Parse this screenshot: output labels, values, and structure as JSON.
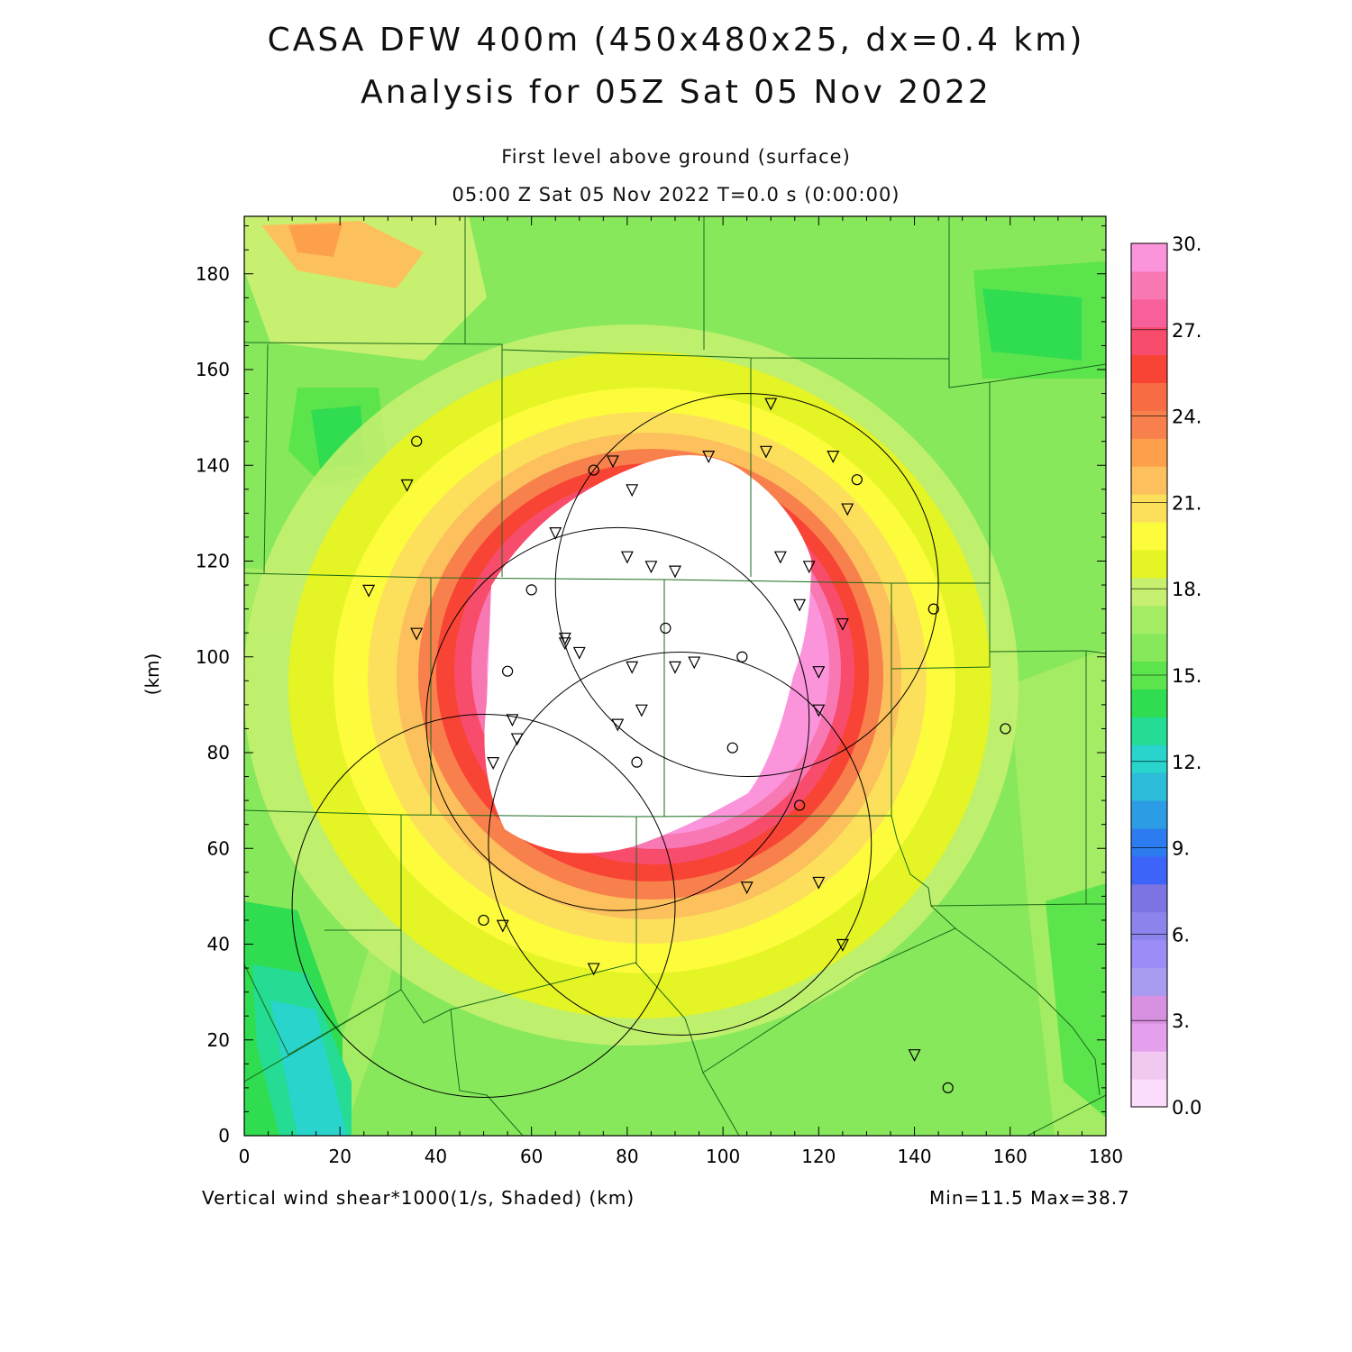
{
  "header": {
    "title_line1": "CASA DFW 400m (450x480x25, dx=0.4 km)",
    "title_line2": "Analysis for 05Z Sat 05 Nov 2022",
    "level": "First level above ground (surface)",
    "time": "05:00 Z Sat 05 Nov 2022   T=0.0 s (0:00:00)"
  },
  "footer": {
    "variable": "Vertical wind shear*1000(1/s, Shaded)  (km)",
    "minmax": "Min=11.5 Max=38.7"
  },
  "axes": {
    "ylabel": "(km)",
    "x_ticks": [
      "0",
      "20",
      "40",
      "60",
      "80",
      "100",
      "120",
      "140",
      "160",
      "180"
    ],
    "y_ticks": [
      "0",
      "20",
      "40",
      "60",
      "80",
      "100",
      "120",
      "140",
      "160",
      "180"
    ],
    "xlim": [
      0,
      180
    ],
    "ylim": [
      0,
      192
    ]
  },
  "colorbar": {
    "labels": [
      "0.0",
      "3.",
      "6.",
      "9.",
      "12.",
      "15.",
      "18.",
      "21.",
      "24.",
      "27.",
      "30."
    ],
    "colors": [
      "#fcdcfc",
      "#f0c8f0",
      "#e4a0ec",
      "#d890e0",
      "#a89cf0",
      "#9c8cf8",
      "#8c84ec",
      "#7c74e0",
      "#3c64f8",
      "#2c7cf0",
      "#2c9ce4",
      "#2cbcd8",
      "#28d4cc",
      "#24dc94",
      "#30dc50",
      "#5ce44c",
      "#88e85c",
      "#a4ec64",
      "#c8f070",
      "#e4f424",
      "#fcfc3c",
      "#fce05c",
      "#fcc05c",
      "#fca04c",
      "#f8804c",
      "#f86c44",
      "#f84434",
      "#f84c6c",
      "#f8609c",
      "#f878b4",
      "#fc94dc"
    ]
  },
  "map_colors": {
    "background_green": "#88e85c",
    "core": "#ffffff"
  },
  "radars": [
    {
      "x": 50,
      "y": 48,
      "r": 40
    },
    {
      "x": 91,
      "y": 61,
      "r": 40
    },
    {
      "x": 78,
      "y": 87,
      "r": 40
    },
    {
      "x": 105,
      "y": 115,
      "r": 40
    }
  ],
  "stations_circle": [
    [
      36,
      145
    ],
    [
      73,
      139
    ],
    [
      128,
      137
    ],
    [
      60,
      114
    ],
    [
      88,
      106
    ],
    [
      104,
      100
    ],
    [
      55,
      97
    ],
    [
      144,
      110
    ],
    [
      102,
      81
    ],
    [
      82,
      78
    ],
    [
      116,
      69
    ],
    [
      50,
      45
    ],
    [
      159,
      85
    ],
    [
      147,
      10
    ]
  ],
  "stations_triangle": [
    [
      34,
      136
    ],
    [
      77,
      141
    ],
    [
      81,
      135
    ],
    [
      97,
      142
    ],
    [
      110,
      153
    ],
    [
      109,
      143
    ],
    [
      123,
      142
    ],
    [
      126,
      131
    ],
    [
      65,
      126
    ],
    [
      80,
      121
    ],
    [
      85,
      119
    ],
    [
      90,
      118
    ],
    [
      112,
      121
    ],
    [
      118,
      119
    ],
    [
      116,
      111
    ],
    [
      125,
      107
    ],
    [
      26,
      114
    ],
    [
      36,
      105
    ],
    [
      67,
      104
    ],
    [
      67,
      103
    ],
    [
      70,
      101
    ],
    [
      81,
      98
    ],
    [
      90,
      98
    ],
    [
      94,
      99
    ],
    [
      120,
      97
    ],
    [
      56,
      87
    ],
    [
      57,
      83
    ],
    [
      83,
      89
    ],
    [
      78,
      86
    ],
    [
      52,
      78
    ],
    [
      120,
      89
    ],
    [
      105,
      52
    ],
    [
      120,
      53
    ],
    [
      125,
      40
    ],
    [
      54,
      44
    ],
    [
      73,
      35
    ],
    [
      140,
      17
    ]
  ]
}
